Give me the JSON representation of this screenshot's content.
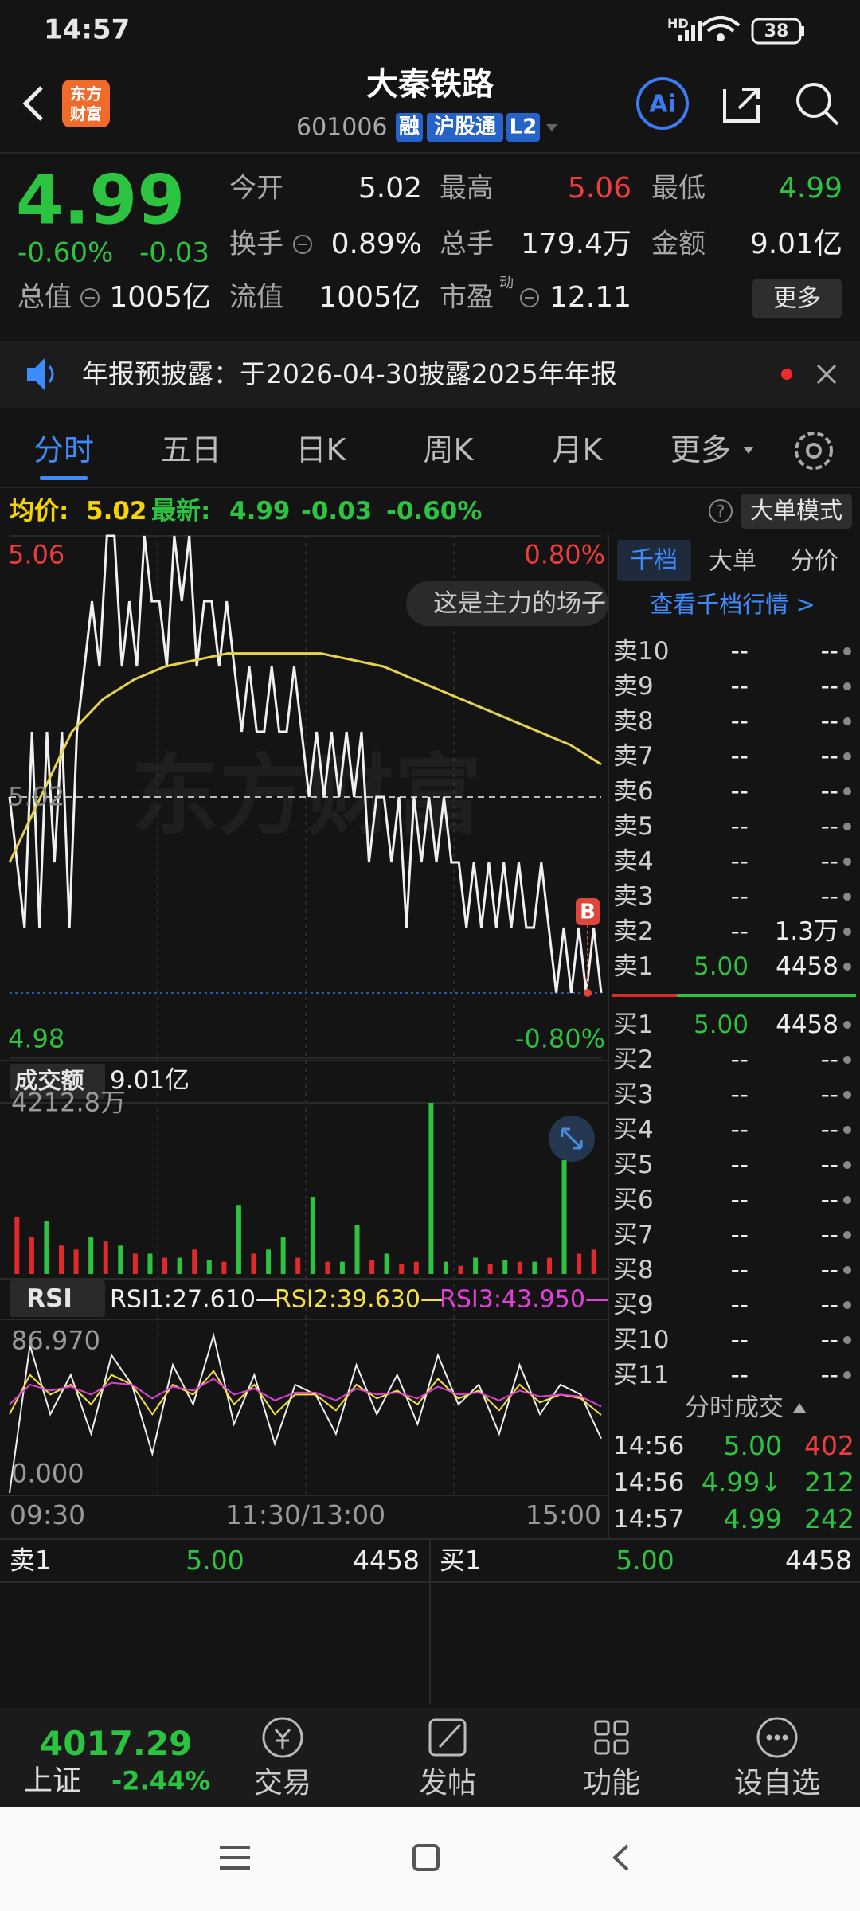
{
  "status_bar": {
    "time": "14:57",
    "network": "HD",
    "battery": "38"
  },
  "header": {
    "logo": [
      "东方",
      "财富"
    ],
    "title": "大秦铁路",
    "code": "601006",
    "tags": [
      "融",
      "沪股通",
      "L2"
    ],
    "ai": "Ai"
  },
  "quote": {
    "price": "4.99",
    "change_pct": "-0.60%",
    "change": "-0.03",
    "fields": [
      {
        "label": "今开",
        "value": "5.02"
      },
      {
        "label": "最高",
        "value": "5.06",
        "color": "#f03c3c"
      },
      {
        "label": "最低",
        "value": "4.99",
        "color": "#2bc33f"
      },
      {
        "label": "换手",
        "value": "0.89%"
      },
      {
        "label": "总手",
        "value": "179.4万"
      },
      {
        "label": "金额",
        "value": "9.01亿"
      },
      {
        "label": "总值",
        "value": "1005亿"
      },
      {
        "label": "流值",
        "value": "1005亿"
      },
      {
        "label": "市盈",
        "sup": "动",
        "value": "12.11"
      }
    ],
    "more": "更多"
  },
  "notice": {
    "text": "年报预披露：于2026-04-30披露2025年年报"
  },
  "tabs": [
    "分时",
    "五日",
    "日K",
    "周K",
    "月K",
    "更多"
  ],
  "info_line": {
    "avg_label": "均价:",
    "avg": "5.02",
    "latest_label": "最新:",
    "latest": "4.99",
    "change": "-0.03",
    "change_pct": "-0.60%",
    "mode": "大单模式"
  },
  "chart_data": [
    {
      "type": "line",
      "ylim": [
        4.98,
        5.06
      ],
      "yticks": [
        5.06,
        5.02,
        4.98
      ],
      "y2lim": [
        -0.8,
        0.8
      ],
      "y2ticks": [
        {
          "value": 0.8,
          "label": "0.80%"
        },
        {
          "value": -0.8,
          "label": "-0.80%"
        }
      ],
      "annotation": "这是主力的场子",
      "watermark": "东方财富",
      "marker": "B",
      "series": [
        {
          "color": "#f0f0f0",
          "values": [
            5.02,
            5.01,
            5.0,
            5.03,
            5.0,
            5.03,
            5.01,
            5.03,
            5.0,
            5.03,
            5.04,
            5.05,
            5.04,
            5.06,
            5.06,
            5.04,
            5.05,
            5.04,
            5.06,
            5.05,
            5.05,
            5.04,
            5.06,
            5.05,
            5.06,
            5.04,
            5.05,
            5.05,
            5.04,
            5.05,
            5.04,
            5.03,
            5.04,
            5.03,
            5.03,
            5.04,
            5.03,
            5.03,
            5.04,
            5.03,
            5.02,
            5.03,
            5.02,
            5.03,
            5.02,
            5.03,
            5.02,
            5.03,
            5.01,
            5.02,
            5.02,
            5.01,
            5.02,
            5.0,
            5.02,
            5.01,
            5.02,
            5.01,
            5.02,
            5.01,
            5.01,
            5.0,
            5.01,
            5.0,
            5.01,
            5.0,
            5.01,
            5.0,
            5.01,
            5.0,
            5.0,
            5.01,
            5.0,
            4.99,
            5.0,
            4.99,
            5.0,
            4.99,
            5.0,
            4.99
          ]
        },
        {
          "color": "#e8d44a",
          "values": [
            5.01,
            5.02,
            5.03,
            5.035,
            5.038,
            5.04,
            5.041,
            5.042,
            5.042,
            5.042,
            5.042,
            5.041,
            5.04,
            5.038,
            5.036,
            5.034,
            5.032,
            5.03,
            5.028,
            5.025
          ]
        }
      ]
    },
    {
      "type": "bar",
      "title": "成交额",
      "title_value": "9.01亿",
      "ylim": [
        0,
        4212.8
      ],
      "yticks": [
        {
          "value": 4212.8,
          "label": "4212.8万"
        }
      ],
      "series": [
        {
          "color": "#e02a2a",
          "values": [
            1400,
            900,
            null,
            700,
            600,
            null,
            800,
            null,
            500,
            null,
            400,
            null,
            600,
            null,
            300,
            null,
            500,
            null,
            null,
            400,
            null,
            300,
            null,
            null,
            350,
            null,
            250,
            300,
            null,
            null,
            200,
            null,
            250,
            null,
            300,
            null,
            400,
            null,
            500,
            600
          ]
        },
        {
          "color": "#2bc33f",
          "values": [
            null,
            null,
            1300,
            null,
            null,
            900,
            null,
            700,
            null,
            500,
            null,
            400,
            null,
            350,
            null,
            1700,
            null,
            600,
            900,
            null,
            1900,
            null,
            300,
            1200,
            null,
            500,
            null,
            null,
            4212.8,
            300,
            null,
            400,
            null,
            350,
            null,
            300,
            null,
            2800,
            null,
            null
          ]
        }
      ]
    },
    {
      "type": "line",
      "title": "RSI",
      "legend": [
        "RSI1:27.610—",
        "RSI2:39.630—",
        "RSI3:43.950—"
      ],
      "ylim": [
        0,
        86.97
      ],
      "yticks": [
        {
          "value": 86.97,
          "label": "86.970"
        },
        {
          "value": 0,
          "label": "0.000"
        }
      ],
      "x_labels": [
        "09:30",
        "11:30/13:00",
        "15:00"
      ],
      "series": [
        {
          "color": "#f0f0f0",
          "values": [
            0,
            75,
            40,
            60,
            30,
            70,
            55,
            20,
            65,
            45,
            80,
            35,
            60,
            25,
            55,
            50,
            30,
            65,
            40,
            60,
            35,
            70,
            45,
            55,
            30,
            65,
            40,
            55,
            50,
            27.61
          ]
        },
        {
          "color": "#f5e23c",
          "values": [
            40,
            60,
            50,
            55,
            45,
            60,
            55,
            40,
            55,
            50,
            62,
            45,
            55,
            40,
            50,
            50,
            42,
            55,
            48,
            52,
            45,
            58,
            48,
            52,
            42,
            55,
            46,
            50,
            48,
            39.63
          ]
        },
        {
          "color": "#e040d8",
          "values": [
            45,
            55,
            52,
            54,
            50,
            56,
            55,
            48,
            54,
            52,
            58,
            50,
            53,
            47,
            51,
            51,
            47,
            53,
            50,
            51,
            48,
            54,
            50,
            51,
            47,
            52,
            49,
            50,
            49,
            43.95
          ]
        }
      ]
    }
  ],
  "order_book": {
    "tabs": [
      "千档",
      "大单",
      "分价"
    ],
    "link": "查看千档行情 >",
    "sell": [
      {
        "label": "卖10",
        "price": "--",
        "volume": "--"
      },
      {
        "label": "卖9",
        "price": "--",
        "volume": "--"
      },
      {
        "label": "卖8",
        "price": "--",
        "volume": "--"
      },
      {
        "label": "卖7",
        "price": "--",
        "volume": "--"
      },
      {
        "label": "卖6",
        "price": "--",
        "volume": "--"
      },
      {
        "label": "卖5",
        "price": "--",
        "volume": "--"
      },
      {
        "label": "卖4",
        "price": "--",
        "volume": "--"
      },
      {
        "label": "卖3",
        "price": "--",
        "volume": "--"
      },
      {
        "label": "卖2",
        "price": "--",
        "volume": "1.3万"
      },
      {
        "label": "卖1",
        "price": "5.00",
        "volume": "4458",
        "price_color": "#2bc33f"
      }
    ],
    "buy": [
      {
        "label": "买1",
        "price": "5.00",
        "volume": "4458",
        "price_color": "#2bc33f"
      },
      {
        "label": "买2",
        "price": "--",
        "volume": "--"
      },
      {
        "label": "买3",
        "price": "--",
        "volume": "--"
      },
      {
        "label": "买4",
        "price": "--",
        "volume": "--"
      },
      {
        "label": "买5",
        "price": "--",
        "volume": "--"
      },
      {
        "label": "买6",
        "price": "--",
        "volume": "--"
      },
      {
        "label": "买7",
        "price": "--",
        "volume": "--"
      },
      {
        "label": "买8",
        "price": "--",
        "volume": "--"
      },
      {
        "label": "买9",
        "price": "--",
        "volume": "--"
      },
      {
        "label": "买10",
        "price": "--",
        "volume": "--"
      },
      {
        "label": "买11",
        "price": "--",
        "volume": "--"
      }
    ]
  },
  "trades": {
    "title": "分时成交",
    "rows": [
      {
        "time": "14:56",
        "price": "5.00",
        "volume": "402",
        "volume_color": "#f03c3c"
      },
      {
        "time": "14:56",
        "price": "4.99↓",
        "volume": "212",
        "volume_color": "#2bc33f"
      },
      {
        "time": "14:57",
        "price": "4.99",
        "volume": "242",
        "volume_color": "#2bc33f"
      }
    ]
  },
  "best": {
    "sell": {
      "label": "卖1",
      "price": "5.00",
      "volume": "4458"
    },
    "buy": {
      "label": "买1",
      "price": "5.00",
      "volume": "4458"
    }
  },
  "bottom_bar": {
    "index_value": "4017.29",
    "index_name": "上证",
    "index_change": "-2.44%",
    "items": [
      "交易",
      "发帖",
      "功能",
      "设自选"
    ]
  }
}
